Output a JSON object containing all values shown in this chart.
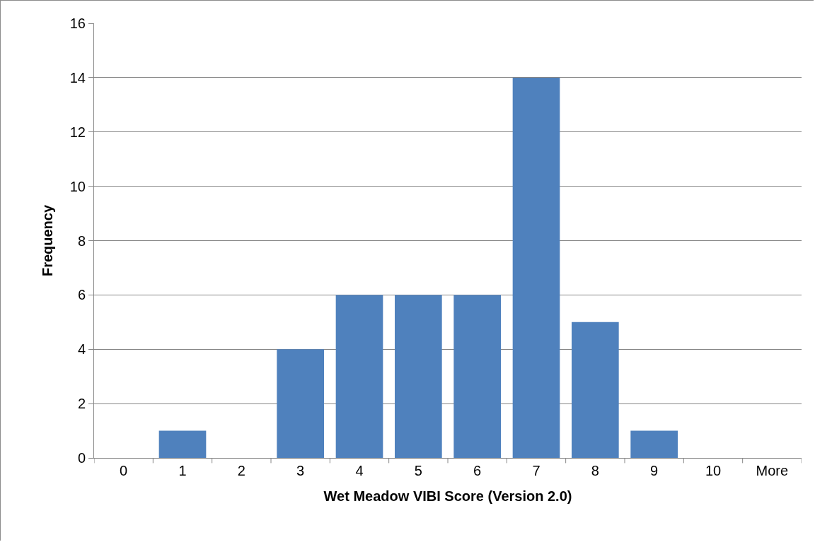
{
  "chart_data": {
    "type": "bar",
    "xlabel": "Wet Meadow VIBI Score (Version 2.0)",
    "ylabel": "Frequency",
    "categories": [
      "0",
      "1",
      "2",
      "3",
      "4",
      "5",
      "6",
      "7",
      "8",
      "9",
      "10",
      "More"
    ],
    "values": [
      0,
      1,
      0,
      4,
      6,
      6,
      6,
      14,
      5,
      1,
      0,
      0
    ],
    "color": "#4f81bd",
    "ylim": [
      0,
      16
    ],
    "yticks": [
      0,
      2,
      4,
      6,
      8,
      10,
      12,
      14,
      16
    ],
    "grid": "y"
  }
}
